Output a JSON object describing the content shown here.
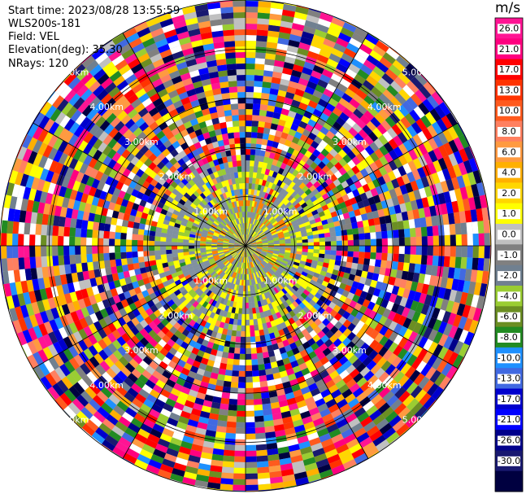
{
  "info": {
    "start_time": "Start time: 2023/08/28 13:55:59",
    "instrument": "WLS200s-181",
    "field": "Field: VEL",
    "elevation": "Elevation(deg): 35.30",
    "nrays": "NRays: 120"
  },
  "chart_data": {
    "type": "heatmap",
    "projection": "polar",
    "field": "VEL",
    "unit": "m/s",
    "nrays": 120,
    "range_rings_km": [
      1,
      2,
      3,
      4,
      5
    ],
    "ring_labels": [
      "1.00km",
      "2.00km",
      "3.00km",
      "4.00km",
      "5.00km"
    ],
    "colorbar": {
      "title": "m/s",
      "ticks": [
        "26.0",
        "21.0",
        "17.0",
        "13.0",
        "10.0",
        "8.0",
        "6.0",
        "4.0",
        "2.0",
        "1.0",
        "0.0",
        "-1.0",
        "-2.0",
        "-4.0",
        "-6.0",
        "-8.0",
        "-10.0",
        "-13.0",
        "-17.0",
        "-21.0",
        "-26.0",
        "-30.0"
      ],
      "colors": [
        "#ff1493",
        "#ff007f",
        "#ff0000",
        "#ff3300",
        "#ff5a1e",
        "#ff8060",
        "#ff9a40",
        "#ffb000",
        "#ffd700",
        "#ffff00",
        "#c0c0c0",
        "#808080",
        "#708090",
        "#9acd32",
        "#6b8e23",
        "#228b22",
        "#1e90ff",
        "#4169e1",
        "#0000cd",
        "#0000ff",
        "#00008b",
        "#191970",
        "#000040"
      ]
    },
    "colors": {
      "near_gray": "#8090a0",
      "near_yellow": "#ffff00",
      "near_green": "#9acd32",
      "near_magenta": "#ff00ff"
    }
  }
}
